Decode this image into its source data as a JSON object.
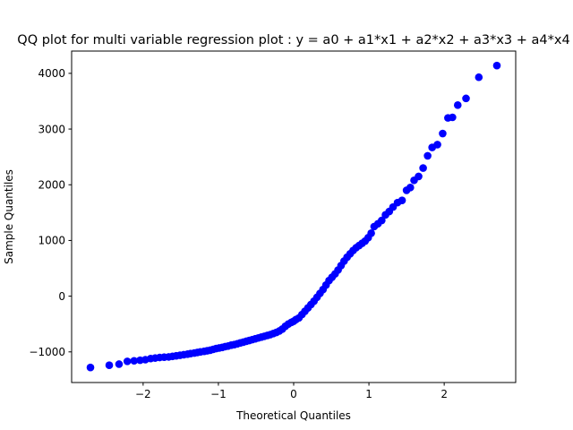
{
  "chart_data": {
    "type": "scatter",
    "title": "QQ plot for multi variable regression plot :  y = a0 + a1*x1 + a2*x2 + a3*x3 + a4*x4",
    "xlabel": "Theoretical Quantiles",
    "ylabel": "Sample Quantiles",
    "xlim": [
      -2.95,
      2.95
    ],
    "ylim": [
      -1550,
      4400
    ],
    "xticks": [
      -2,
      -1,
      0,
      1,
      2
    ],
    "xtick_labels": [
      "−2",
      "−1",
      "0",
      "1",
      "2"
    ],
    "yticks": [
      -1000,
      0,
      1000,
      2000,
      3000,
      4000
    ],
    "ytick_labels": [
      "−1000",
      "0",
      "1000",
      "2000",
      "3000",
      "4000"
    ],
    "grid": false,
    "series": [
      {
        "name": "sample quantiles",
        "color": "#0000ff",
        "marker": "circle",
        "points": [
          [
            -2.7,
            -1280
          ],
          [
            -2.45,
            -1240
          ],
          [
            -2.32,
            -1220
          ],
          [
            -2.21,
            -1170
          ],
          [
            -2.12,
            -1160
          ],
          [
            -2.04,
            -1150
          ],
          [
            -1.97,
            -1140
          ],
          [
            -1.9,
            -1120
          ],
          [
            -1.84,
            -1110
          ],
          [
            -1.78,
            -1100
          ],
          [
            -1.72,
            -1095
          ],
          [
            -1.66,
            -1090
          ],
          [
            -1.61,
            -1080
          ],
          [
            -1.56,
            -1070
          ],
          [
            -1.51,
            -1060
          ],
          [
            -1.46,
            -1050
          ],
          [
            -1.41,
            -1040
          ],
          [
            -1.37,
            -1030
          ],
          [
            -1.32,
            -1020
          ],
          [
            -1.28,
            -1010
          ],
          [
            -1.24,
            -1000
          ],
          [
            -1.19,
            -990
          ],
          [
            -1.15,
            -980
          ],
          [
            -1.11,
            -970
          ],
          [
            -1.07,
            -955
          ],
          [
            -1.03,
            -940
          ],
          [
            -0.99,
            -930
          ],
          [
            -0.95,
            -920
          ],
          [
            -0.91,
            -905
          ],
          [
            -0.87,
            -895
          ],
          [
            -0.83,
            -880
          ],
          [
            -0.79,
            -870
          ],
          [
            -0.75,
            -855
          ],
          [
            -0.71,
            -840
          ],
          [
            -0.67,
            -825
          ],
          [
            -0.63,
            -810
          ],
          [
            -0.59,
            -795
          ],
          [
            -0.55,
            -780
          ],
          [
            -0.51,
            -765
          ],
          [
            -0.47,
            -750
          ],
          [
            -0.43,
            -735
          ],
          [
            -0.39,
            -720
          ],
          [
            -0.35,
            -705
          ],
          [
            -0.31,
            -690
          ],
          [
            -0.27,
            -670
          ],
          [
            -0.23,
            -650
          ],
          [
            -0.19,
            -625
          ],
          [
            -0.15,
            -590
          ],
          [
            -0.11,
            -540
          ],
          [
            -0.07,
            -500
          ],
          [
            -0.03,
            -470
          ],
          [
            0.0,
            -450
          ],
          [
            0.03,
            -420
          ],
          [
            0.07,
            -390
          ],
          [
            0.11,
            -330
          ],
          [
            0.15,
            -270
          ],
          [
            0.19,
            -210
          ],
          [
            0.23,
            -150
          ],
          [
            0.27,
            -90
          ],
          [
            0.31,
            -20
          ],
          [
            0.35,
            50
          ],
          [
            0.39,
            120
          ],
          [
            0.43,
            200
          ],
          [
            0.47,
            280
          ],
          [
            0.51,
            340
          ],
          [
            0.55,
            400
          ],
          [
            0.59,
            470
          ],
          [
            0.63,
            550
          ],
          [
            0.67,
            630
          ],
          [
            0.71,
            700
          ],
          [
            0.75,
            760
          ],
          [
            0.79,
            820
          ],
          [
            0.83,
            870
          ],
          [
            0.87,
            910
          ],
          [
            0.91,
            950
          ],
          [
            0.95,
            990
          ],
          [
            0.99,
            1050
          ],
          [
            1.03,
            1130
          ],
          [
            1.07,
            1250
          ],
          [
            1.12,
            1300
          ],
          [
            1.17,
            1360
          ],
          [
            1.22,
            1460
          ],
          [
            1.27,
            1520
          ],
          [
            1.32,
            1600
          ],
          [
            1.38,
            1680
          ],
          [
            1.44,
            1720
          ],
          [
            1.5,
            1900
          ],
          [
            1.55,
            1950
          ],
          [
            1.6,
            2080
          ],
          [
            1.66,
            2150
          ],
          [
            1.72,
            2300
          ],
          [
            1.78,
            2520
          ],
          [
            1.84,
            2670
          ],
          [
            1.91,
            2720
          ],
          [
            1.98,
            2920
          ],
          [
            2.05,
            3200
          ],
          [
            2.11,
            3210
          ],
          [
            2.18,
            3430
          ],
          [
            2.29,
            3550
          ],
          [
            2.46,
            3930
          ],
          [
            2.7,
            4140
          ]
        ]
      }
    ]
  }
}
